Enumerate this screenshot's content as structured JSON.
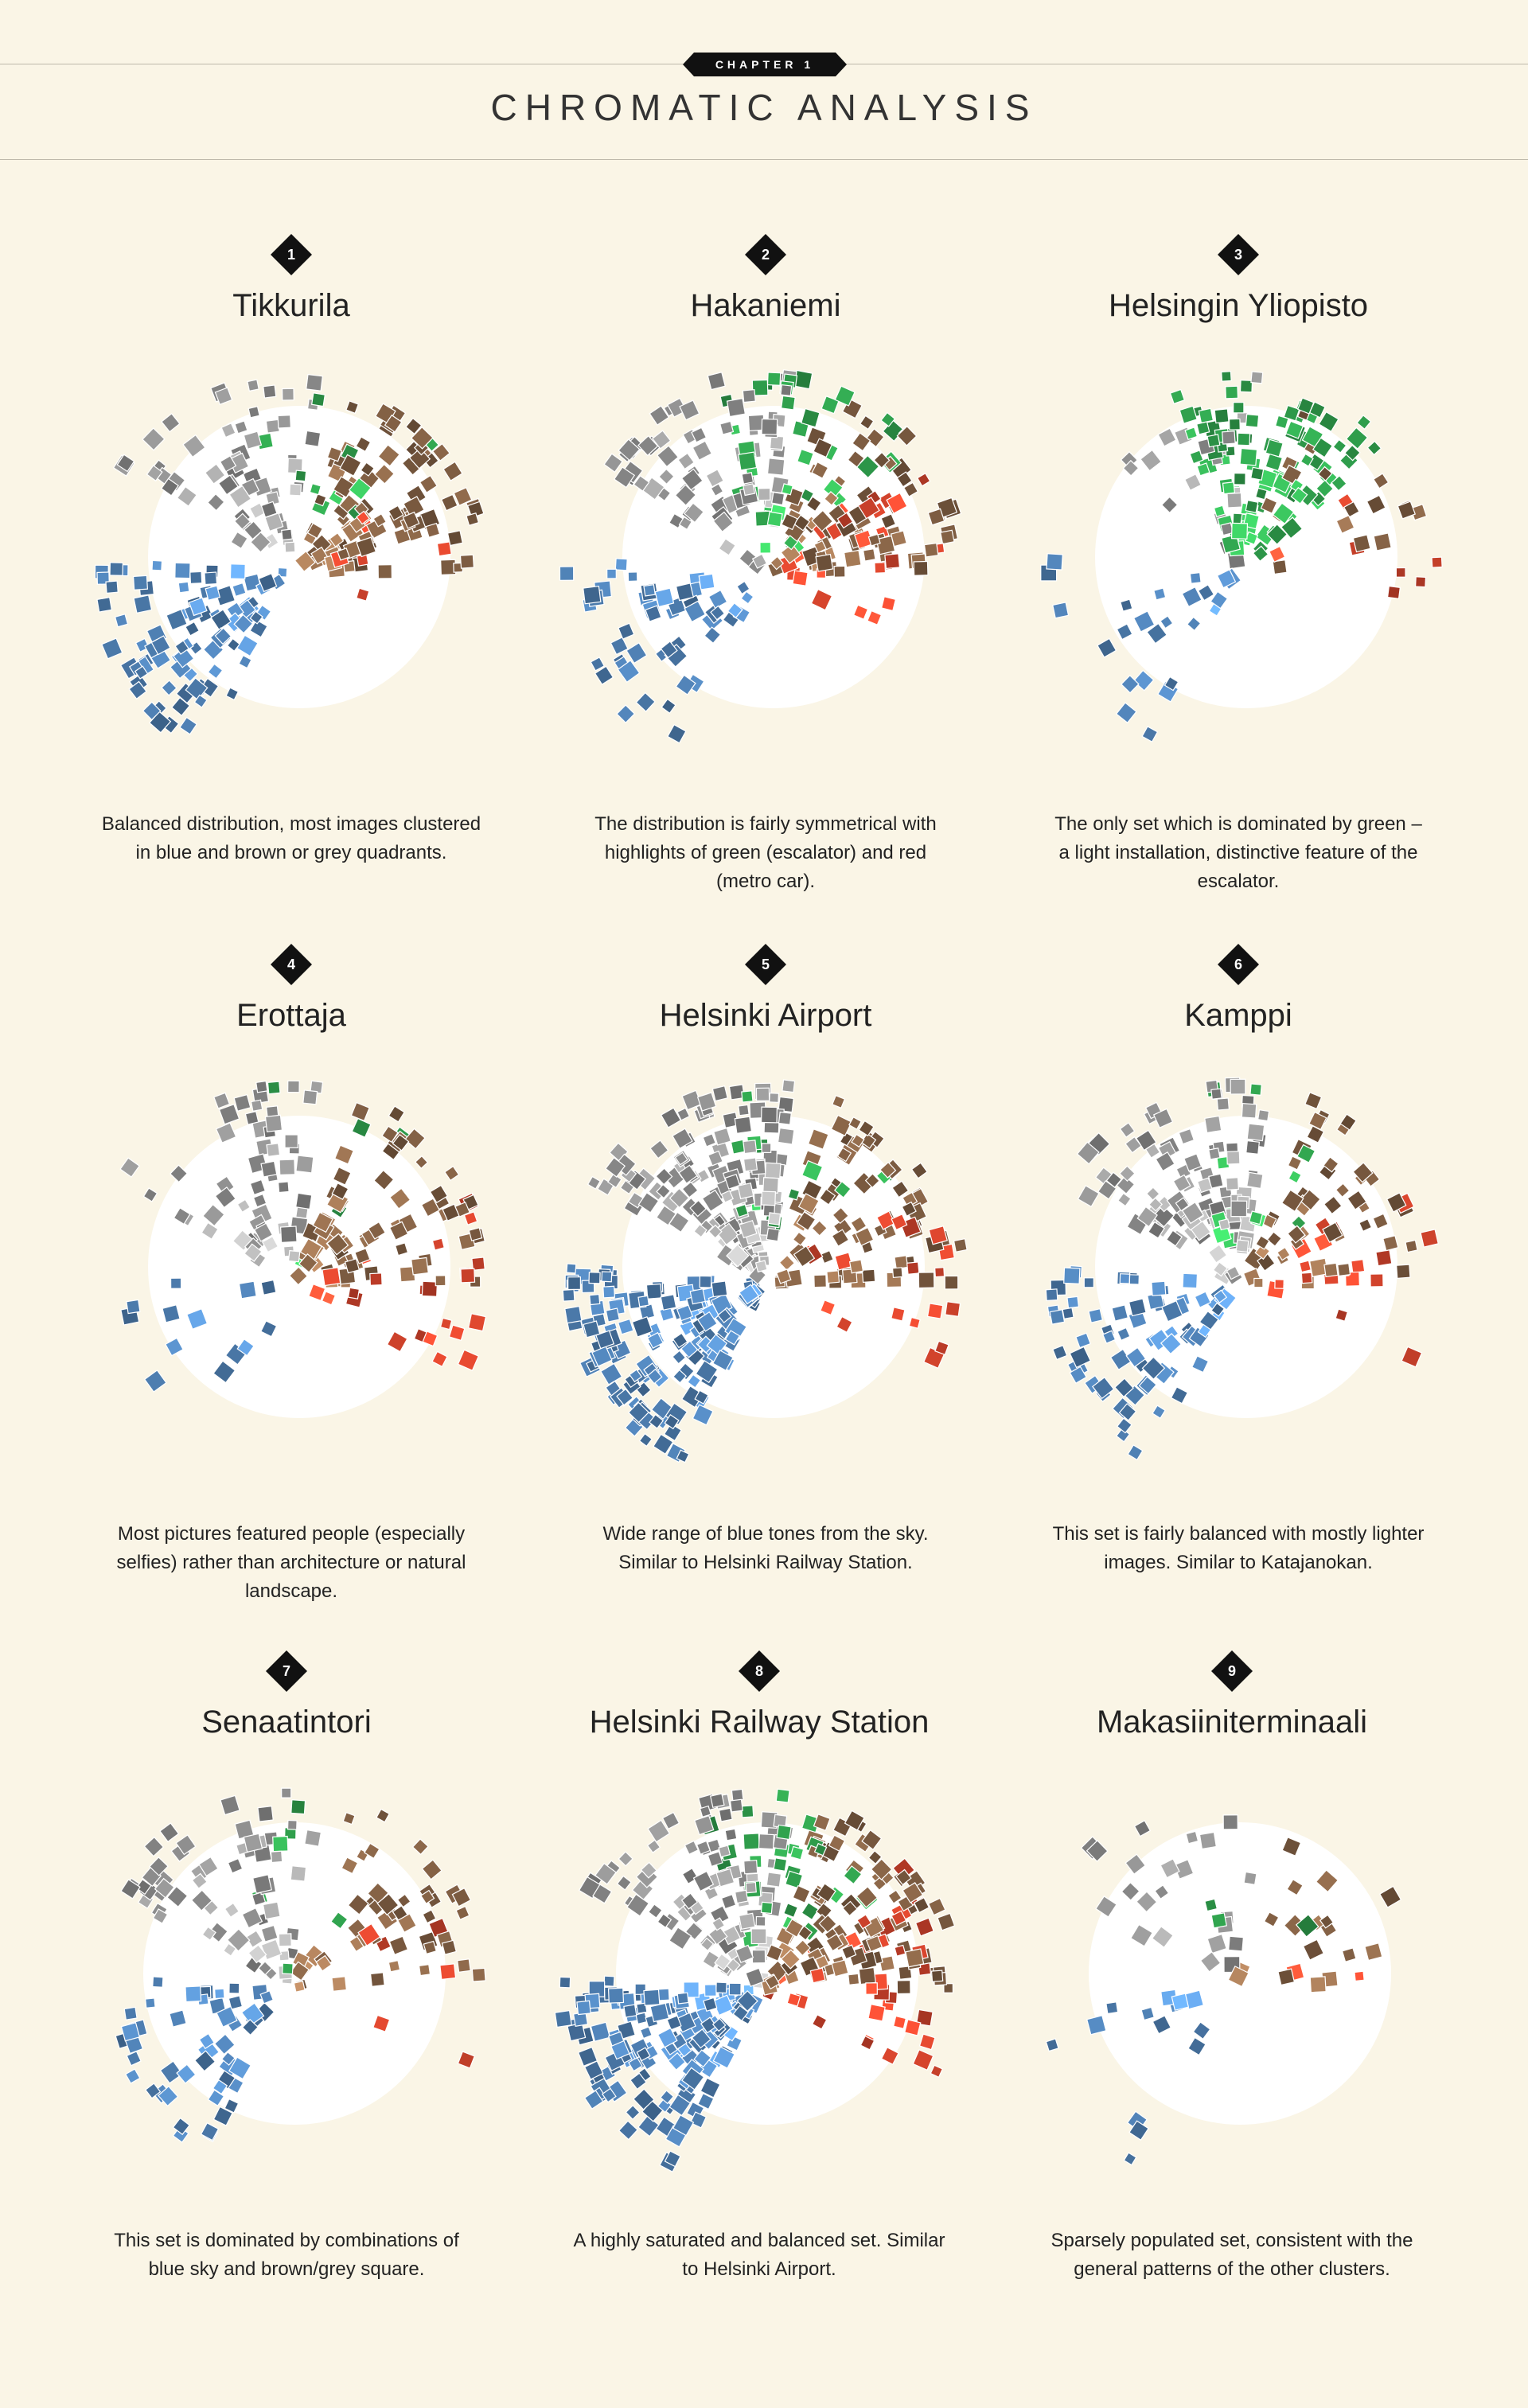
{
  "header": {
    "chapter_label": "CHAPTER 1",
    "title": "CHROMATIC ANALYSIS"
  },
  "panels": [
    {
      "number": "1",
      "name": "Tikkurila",
      "caption": "Balanced distribution, most images clustered in blue and brown or grey quadrants.",
      "hue_weights": {
        "blue": 3,
        "brown": 3,
        "grey": 2,
        "green": 0.3,
        "red": 0.2
      },
      "density": "high"
    },
    {
      "number": "2",
      "name": "Hakaniemi",
      "caption": "The distribution is fairly symmetrical with highlights of green (escalator) and red (metro car).",
      "hue_weights": {
        "blue": 2,
        "brown": 2,
        "grey": 2,
        "green": 1,
        "red": 1
      },
      "density": "high"
    },
    {
      "number": "3",
      "name": "Helsingin Yliopisto",
      "caption": "The only set which is dominated by green – a light installation, distinctive feature of the escalator.",
      "hue_weights": {
        "blue": 1,
        "brown": 1,
        "grey": 1,
        "green": 4,
        "red": 0.3
      },
      "density": "medium"
    },
    {
      "number": "4",
      "name": "Erottaja",
      "caption": "Most pictures featured people (especially selfies) rather than architecture or natural  landscape.",
      "hue_weights": {
        "blue": 1,
        "brown": 3,
        "grey": 2,
        "green": 0.2,
        "red": 1
      },
      "density": "medium"
    },
    {
      "number": "5",
      "name": "Helsinki Airport",
      "caption": "Wide range of blue tones from the sky. Similar to Helsinki Railway Station.",
      "hue_weights": {
        "blue": 4,
        "brown": 2,
        "grey": 3,
        "green": 0.3,
        "red": 0.3
      },
      "density": "very-high"
    },
    {
      "number": "6",
      "name": "Kamppi",
      "caption": "This set is fairly balanced with mostly lighter images. Similar to Katajanokan.",
      "hue_weights": {
        "blue": 2,
        "brown": 2,
        "grey": 3,
        "green": 0.3,
        "red": 0.5
      },
      "density": "high"
    },
    {
      "number": "7",
      "name": "Senaatintori",
      "caption": "This set is dominated by combinations of blue sky and brown/grey square.",
      "hue_weights": {
        "blue": 3,
        "brown": 2,
        "grey": 3,
        "green": 0.2,
        "red": 0.2
      },
      "density": "medium"
    },
    {
      "number": "8",
      "name": "Helsinki Railway Station",
      "caption": "A highly saturated and balanced set. Similar to Helsinki Airport.",
      "hue_weights": {
        "blue": 3,
        "brown": 2,
        "grey": 2,
        "green": 0.5,
        "red": 1
      },
      "density": "very-high"
    },
    {
      "number": "9",
      "name": "Makasiiniterminaali",
      "caption": "Sparsely populated set, consistent with the general patterns of the other clusters.",
      "hue_weights": {
        "blue": 1,
        "brown": 1,
        "grey": 1,
        "green": 0.1,
        "red": 0.2
      },
      "density": "low"
    }
  ],
  "colors": {
    "background": "#faf5e6",
    "disc": "#ffffff",
    "badge": "#111111",
    "blue": "#4a78a8",
    "brown": "#7a5a40",
    "grey": "#8a8a8a",
    "green": "#2e9a4a",
    "red": "#c8402a"
  }
}
